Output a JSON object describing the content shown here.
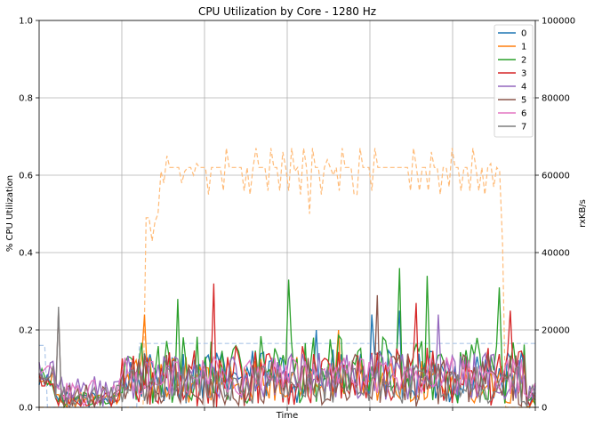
{
  "chart_data": {
    "type": "line",
    "title": "CPU Utilization by Core - 1280 Hz",
    "xlabel": "Time",
    "ylabel": "% CPU Utilization",
    "ylabel_right": "rxKB/s",
    "ylim": [
      0,
      1.0
    ],
    "ylim_right": [
      0,
      100000
    ],
    "yticks": [
      "0.0",
      "0.2",
      "0.4",
      "0.6",
      "0.8",
      "1.0"
    ],
    "yticks_right": [
      "0",
      "20000",
      "40000",
      "60000",
      "80000",
      "100000"
    ],
    "grid": true,
    "legend_position": "top-right",
    "n_points": 180,
    "x_grid_count": 6,
    "colors": [
      "#1f77b4",
      "#ff7f0e",
      "#2ca02c",
      "#d62728",
      "#9467bd",
      "#8c564b",
      "#e377c2",
      "#7f7f7f"
    ],
    "series": [
      {
        "name": "0",
        "color": "#1f77b4",
        "baseline": 0.02,
        "active": 0.08,
        "spread": 0.07,
        "peaks": [
          [
            100,
            0.2
          ],
          [
            120,
            0.24
          ],
          [
            130,
            0.25
          ]
        ]
      },
      {
        "name": "1",
        "color": "#ff7f0e",
        "baseline": 0.02,
        "active": 0.07,
        "spread": 0.06,
        "peaks": [
          [
            38,
            0.24
          ],
          [
            108,
            0.2
          ]
        ]
      },
      {
        "name": "2",
        "color": "#2ca02c",
        "baseline": 0.02,
        "active": 0.1,
        "spread": 0.09,
        "peaks": [
          [
            50,
            0.28
          ],
          [
            90,
            0.33
          ],
          [
            130,
            0.36
          ],
          [
            140,
            0.34
          ],
          [
            166,
            0.31
          ]
        ]
      },
      {
        "name": "3",
        "color": "#d62728",
        "baseline": 0.02,
        "active": 0.08,
        "spread": 0.08,
        "peaks": [
          [
            63,
            0.32
          ],
          [
            136,
            0.27
          ],
          [
            170,
            0.25
          ]
        ]
      },
      {
        "name": "4",
        "color": "#9467bd",
        "baseline": 0.04,
        "active": 0.08,
        "spread": 0.06,
        "peaks": [
          [
            144,
            0.24
          ]
        ]
      },
      {
        "name": "5",
        "color": "#8c564b",
        "baseline": 0.03,
        "active": 0.07,
        "spread": 0.07,
        "peaks": [
          [
            7,
            0.25
          ],
          [
            122,
            0.29
          ]
        ]
      },
      {
        "name": "6",
        "color": "#e377c2",
        "baseline": 0.04,
        "active": 0.08,
        "spread": 0.05,
        "peaks": []
      },
      {
        "name": "7",
        "color": "#7f7f7f",
        "baseline": 0.03,
        "active": 0.06,
        "spread": 0.05,
        "peaks": [
          [
            7,
            0.26
          ]
        ]
      }
    ],
    "rx_series": [
      {
        "color": "#ffbb78",
        "style": "dashed",
        "values_kb": [
          0,
          0,
          0,
          0,
          0,
          0,
          0,
          0,
          0,
          0,
          0,
          0,
          0,
          0,
          0,
          0,
          0,
          0,
          0,
          0,
          0,
          0,
          0,
          0,
          0,
          0,
          0,
          0,
          0,
          0,
          0,
          0,
          0,
          0,
          0,
          0,
          49000,
          49000,
          43000,
          48000,
          50000,
          61000,
          58000,
          65000,
          62000,
          62000,
          62000,
          62000,
          58000,
          61000,
          62000,
          62000,
          60000,
          63000,
          62000,
          62000,
          62000,
          55000,
          62000,
          62000,
          62000,
          62000,
          56000,
          67000,
          62000,
          62000,
          62000,
          62000,
          62000,
          56000,
          62000,
          55000,
          62000,
          67000,
          62000,
          62000,
          62000,
          56000,
          67000,
          62000,
          62000,
          56000,
          66000,
          62000,
          56000,
          67000,
          61000,
          62000,
          55000,
          67000,
          62000,
          50000,
          67000,
          62000,
          62000,
          55000,
          62000,
          64000,
          62000,
          60000,
          62000,
          56000,
          67000,
          62000,
          62000,
          62000,
          55000,
          55000,
          67000,
          62000,
          62000,
          62000,
          56000,
          67000,
          62000,
          62000,
          62000,
          62000,
          62000,
          62000,
          62000,
          62000,
          62000,
          62000,
          62000,
          56000,
          67000,
          62000,
          56000,
          62000,
          62000,
          56000,
          66000,
          62000,
          62000,
          55000,
          62000,
          62000,
          57000,
          67000,
          62000,
          62000,
          56000,
          62000,
          62000,
          56000,
          67000,
          62000,
          56000,
          62000,
          55000,
          62000,
          63000,
          57000,
          62000,
          61000,
          42000,
          0,
          0,
          0,
          0,
          0,
          0,
          0,
          0,
          0,
          0,
          0
        ]
      },
      {
        "color": "#aec7e8",
        "style": "dashed",
        "values_kb": [
          16000,
          16000,
          16000,
          0,
          0,
          0,
          0,
          0,
          0,
          0,
          0,
          0,
          0,
          0,
          0,
          0,
          0,
          0,
          0,
          0,
          0,
          0,
          0,
          0,
          0,
          0,
          0,
          0,
          0,
          0,
          0,
          0,
          0,
          0,
          0,
          0,
          16500,
          16500,
          16500,
          16500,
          16500,
          16500,
          16500,
          16500,
          16500,
          16500,
          16500,
          16500,
          16500,
          16500,
          16500,
          16500,
          16500,
          16500,
          16500,
          16500,
          16500,
          16500,
          16500,
          16500,
          16500,
          16500,
          16500,
          16500,
          16500,
          16500,
          16500,
          16500,
          16500,
          16500,
          16500,
          16500,
          16500,
          16500,
          16500,
          16500,
          16500,
          16500,
          16500,
          16500,
          16500,
          16500,
          16500,
          16500,
          16500,
          16500,
          16500,
          16500,
          16500,
          16500,
          16500,
          16500,
          16500,
          16500,
          16500,
          16500,
          16500,
          16500,
          16500,
          16500,
          16500,
          16500,
          16500,
          16500,
          16500,
          16500,
          16500,
          16500,
          16500,
          16500,
          16500,
          16500,
          16500,
          16500,
          16500,
          16500,
          16500,
          16500,
          16500,
          16500,
          16500,
          16500,
          16500,
          16500,
          16500,
          16500,
          16500,
          16500,
          16500,
          16500,
          16500,
          16500,
          16500,
          16500,
          16500,
          16500,
          16500,
          16500,
          16500,
          16500,
          16500,
          16500,
          16500,
          16500,
          16500,
          16500,
          16500,
          16500,
          16500,
          16500,
          16500,
          16500,
          16500,
          16500,
          16500,
          16500,
          16500,
          16500,
          16500,
          16500,
          16500,
          16500,
          16500,
          16500,
          16500,
          16500,
          16500,
          16500,
          16500,
          16500,
          16500,
          16500,
          16500,
          16500,
          16500,
          16500,
          16500,
          16500,
          16500
        ]
      }
    ]
  }
}
